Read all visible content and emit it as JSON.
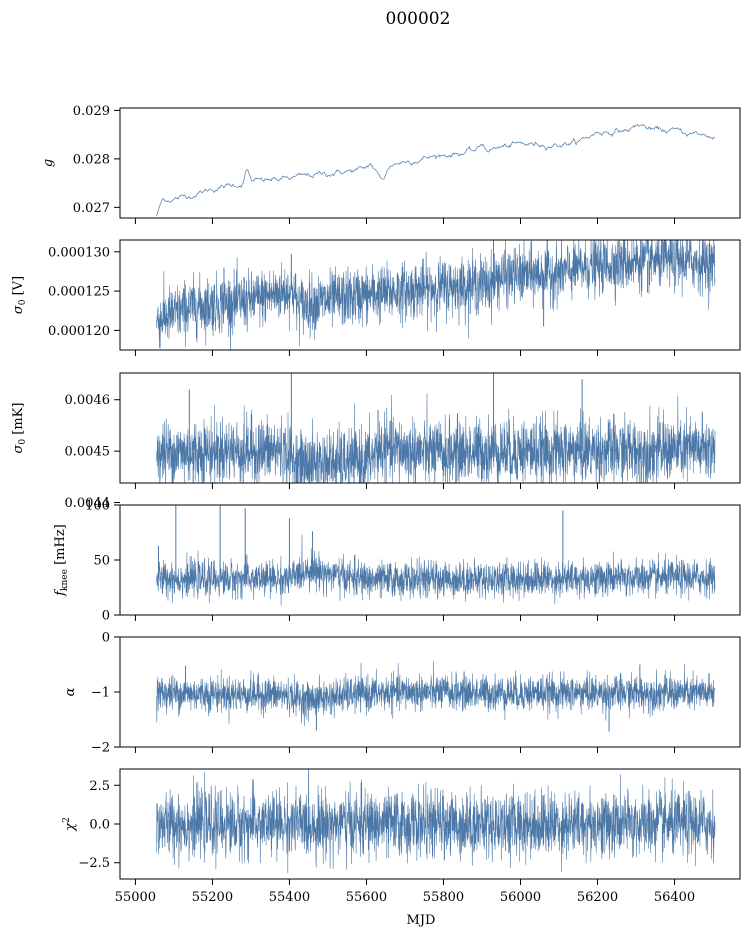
{
  "figure": {
    "title": "000002"
  },
  "colors": {
    "series": "#4c78a8"
  },
  "chart_data": [
    {
      "type": "line",
      "ylabel": "g",
      "ylabel_math": {
        "base": "g",
        "sub": ""
      },
      "xlim": [
        54960,
        56570
      ],
      "ylim": [
        0.02678,
        0.02905
      ],
      "yticks": [
        0.027,
        0.028,
        0.029
      ],
      "ytick_labels": [
        "0.027",
        "0.028",
        "0.029"
      ],
      "x_start": 55055,
      "x_end": 56505,
      "style": "thin",
      "trend": [
        [
          55055,
          0.02683
        ],
        [
          55070,
          0.02715
        ],
        [
          55120,
          0.0272
        ],
        [
          55200,
          0.02738
        ],
        [
          55300,
          0.02752
        ],
        [
          55400,
          0.0276
        ],
        [
          55500,
          0.0277
        ],
        [
          55620,
          0.0278
        ],
        [
          55700,
          0.02795
        ],
        [
          55800,
          0.02808
        ],
        [
          55900,
          0.02818
        ],
        [
          56000,
          0.0283
        ],
        [
          56100,
          0.0283
        ],
        [
          56150,
          0.02835
        ],
        [
          56200,
          0.02855
        ],
        [
          56300,
          0.0286
        ],
        [
          56400,
          0.02858
        ],
        [
          56505,
          0.02845
        ]
      ],
      "noise": 3.5e-05,
      "features": [
        [
          55290,
          0.00025,
          8
        ],
        [
          55640,
          -0.00025,
          15
        ],
        [
          55610,
          0.0001,
          10
        ],
        [
          55900,
          0.00012,
          8
        ],
        [
          56310,
          0.0001,
          20
        ]
      ],
      "show_xticklabels": false
    },
    {
      "type": "line",
      "ylabel": "σ0 [V]",
      "ylabel_math": {
        "base": "σ",
        "sub": "0",
        "rest": " [V]"
      },
      "xlim": [
        54960,
        56570
      ],
      "ylim": [
        0.0001175,
        0.0001315
      ],
      "yticks": [
        0.00012,
        0.000125,
        0.00013
      ],
      "ytick_labels": [
        "0.000120",
        "0.000125",
        "0.000130"
      ],
      "x_start": 55055,
      "x_end": 56505,
      "style": "band",
      "trend": [
        [
          55055,
          0.0001213
        ],
        [
          55150,
          0.000123
        ],
        [
          55300,
          0.0001238
        ],
        [
          55410,
          0.0001252
        ],
        [
          55420,
          0.0001232
        ],
        [
          55600,
          0.0001245
        ],
        [
          55800,
          0.0001255
        ],
        [
          55930,
          0.000126
        ],
        [
          55940,
          0.0001268
        ],
        [
          56100,
          0.0001273
        ],
        [
          56200,
          0.0001283
        ],
        [
          56300,
          0.0001288
        ],
        [
          56400,
          0.000129
        ],
        [
          56505,
          0.0001285
        ]
      ],
      "noise": 1.8e-06,
      "spikes": [
        [
          55230,
          0.000128
        ],
        [
          55405,
          0.0001297
        ],
        [
          55930,
          0.0001315
        ],
        [
          56060,
          0.0001205
        ],
        [
          56330,
          0.0001248
        ]
      ],
      "show_xticklabels": false
    },
    {
      "type": "line",
      "ylabel": "σ0 [mK]",
      "ylabel_math": {
        "base": "σ",
        "sub": "0",
        "rest": " [mK]"
      },
      "xlim": [
        54960,
        56570
      ],
      "ylim": [
        0.004438,
        0.004652
      ],
      "yticks": [
        0.0044,
        0.0045,
        0.0046
      ],
      "ytick_labels": [
        "0.0044",
        "0.0045",
        "0.0046"
      ],
      "x_start": 55055,
      "x_end": 56505,
      "style": "band",
      "trend": [
        [
          55055,
          0.004495
        ],
        [
          55200,
          0.0045
        ],
        [
          55380,
          0.004502
        ],
        [
          55420,
          0.004475
        ],
        [
          55600,
          0.00448
        ],
        [
          55640,
          0.004505
        ],
        [
          55800,
          0.004495
        ],
        [
          55900,
          0.0045
        ],
        [
          56100,
          0.0045
        ],
        [
          56300,
          0.0045
        ],
        [
          56505,
          0.004505
        ]
      ],
      "noise": 3.2e-05,
      "spikes": [
        [
          55140,
          0.00462
        ],
        [
          55405,
          0.00466
        ],
        [
          55930,
          0.00466
        ],
        [
          55150,
          0.00443
        ],
        [
          55280,
          0.00443
        ],
        [
          56310,
          0.00438
        ],
        [
          56160,
          0.00464
        ],
        [
          55630,
          0.00458
        ]
      ],
      "show_xticklabels": false
    },
    {
      "type": "line",
      "ylabel": "fknee [mHz]",
      "ylabel_math": {
        "base": "f",
        "sub": "knee",
        "rest": " [mHz]"
      },
      "xlim": [
        54960,
        56570
      ],
      "ylim": [
        0,
        100
      ],
      "yticks": [
        0,
        50,
        100
      ],
      "ytick_labels": [
        "0",
        "50",
        "100"
      ],
      "x_start": 55055,
      "x_end": 56505,
      "style": "band",
      "trend": [
        [
          55055,
          33
        ],
        [
          55400,
          33
        ],
        [
          55450,
          42
        ],
        [
          55520,
          36
        ],
        [
          55600,
          32
        ],
        [
          56000,
          33
        ],
        [
          56505,
          34
        ]
      ],
      "noise": 8,
      "spikes": [
        [
          55105,
          100
        ],
        [
          55220,
          100
        ],
        [
          55285,
          97
        ],
        [
          55400,
          88
        ],
        [
          56110,
          95
        ],
        [
          55460,
          76
        ],
        [
          55060,
          63
        ]
      ],
      "show_xticklabels": false
    },
    {
      "type": "line",
      "ylabel": "α",
      "ylabel_math": {
        "base": "α",
        "sub": ""
      },
      "xlim": [
        54960,
        56570
      ],
      "ylim": [
        -2,
        0
      ],
      "yticks": [
        -2,
        -1,
        0
      ],
      "ytick_labels": [
        "−2",
        "−1",
        "0"
      ],
      "x_start": 55055,
      "x_end": 56505,
      "style": "band",
      "trend": [
        [
          55055,
          -1.02
        ],
        [
          55380,
          -1.05
        ],
        [
          55450,
          -1.15
        ],
        [
          55550,
          -1.05
        ],
        [
          55700,
          -1.0
        ],
        [
          56000,
          -1.02
        ],
        [
          56505,
          -1.02
        ]
      ],
      "noise": 0.16,
      "spikes": [
        [
          55130,
          -0.52
        ],
        [
          56310,
          -0.5
        ],
        [
          56230,
          -1.72
        ],
        [
          55470,
          -1.7
        ]
      ],
      "show_xticklabels": false
    },
    {
      "type": "line",
      "ylabel": "χ2",
      "ylabel_math": {
        "base": "χ",
        "sup": "2"
      },
      "xlim": [
        54960,
        56570
      ],
      "ylim": [
        -3.55,
        3.55
      ],
      "yticks": [
        -2.5,
        0.0,
        2.5
      ],
      "ytick_labels": [
        "−2.5",
        "0.0",
        "2.5"
      ],
      "x_start": 55055,
      "x_end": 56505,
      "style": "band",
      "trend": [
        [
          55055,
          0
        ],
        [
          56505,
          0
        ]
      ],
      "noise": 1.05,
      "spikes": [],
      "xticks": [
        55000,
        55200,
        55400,
        55600,
        55800,
        56000,
        56200,
        56400
      ],
      "xtick_labels": [
        "55000",
        "55200",
        "55400",
        "55600",
        "55800",
        "56000",
        "56200",
        "56400"
      ],
      "xlabel": "MJD",
      "show_xticklabels": true
    }
  ]
}
